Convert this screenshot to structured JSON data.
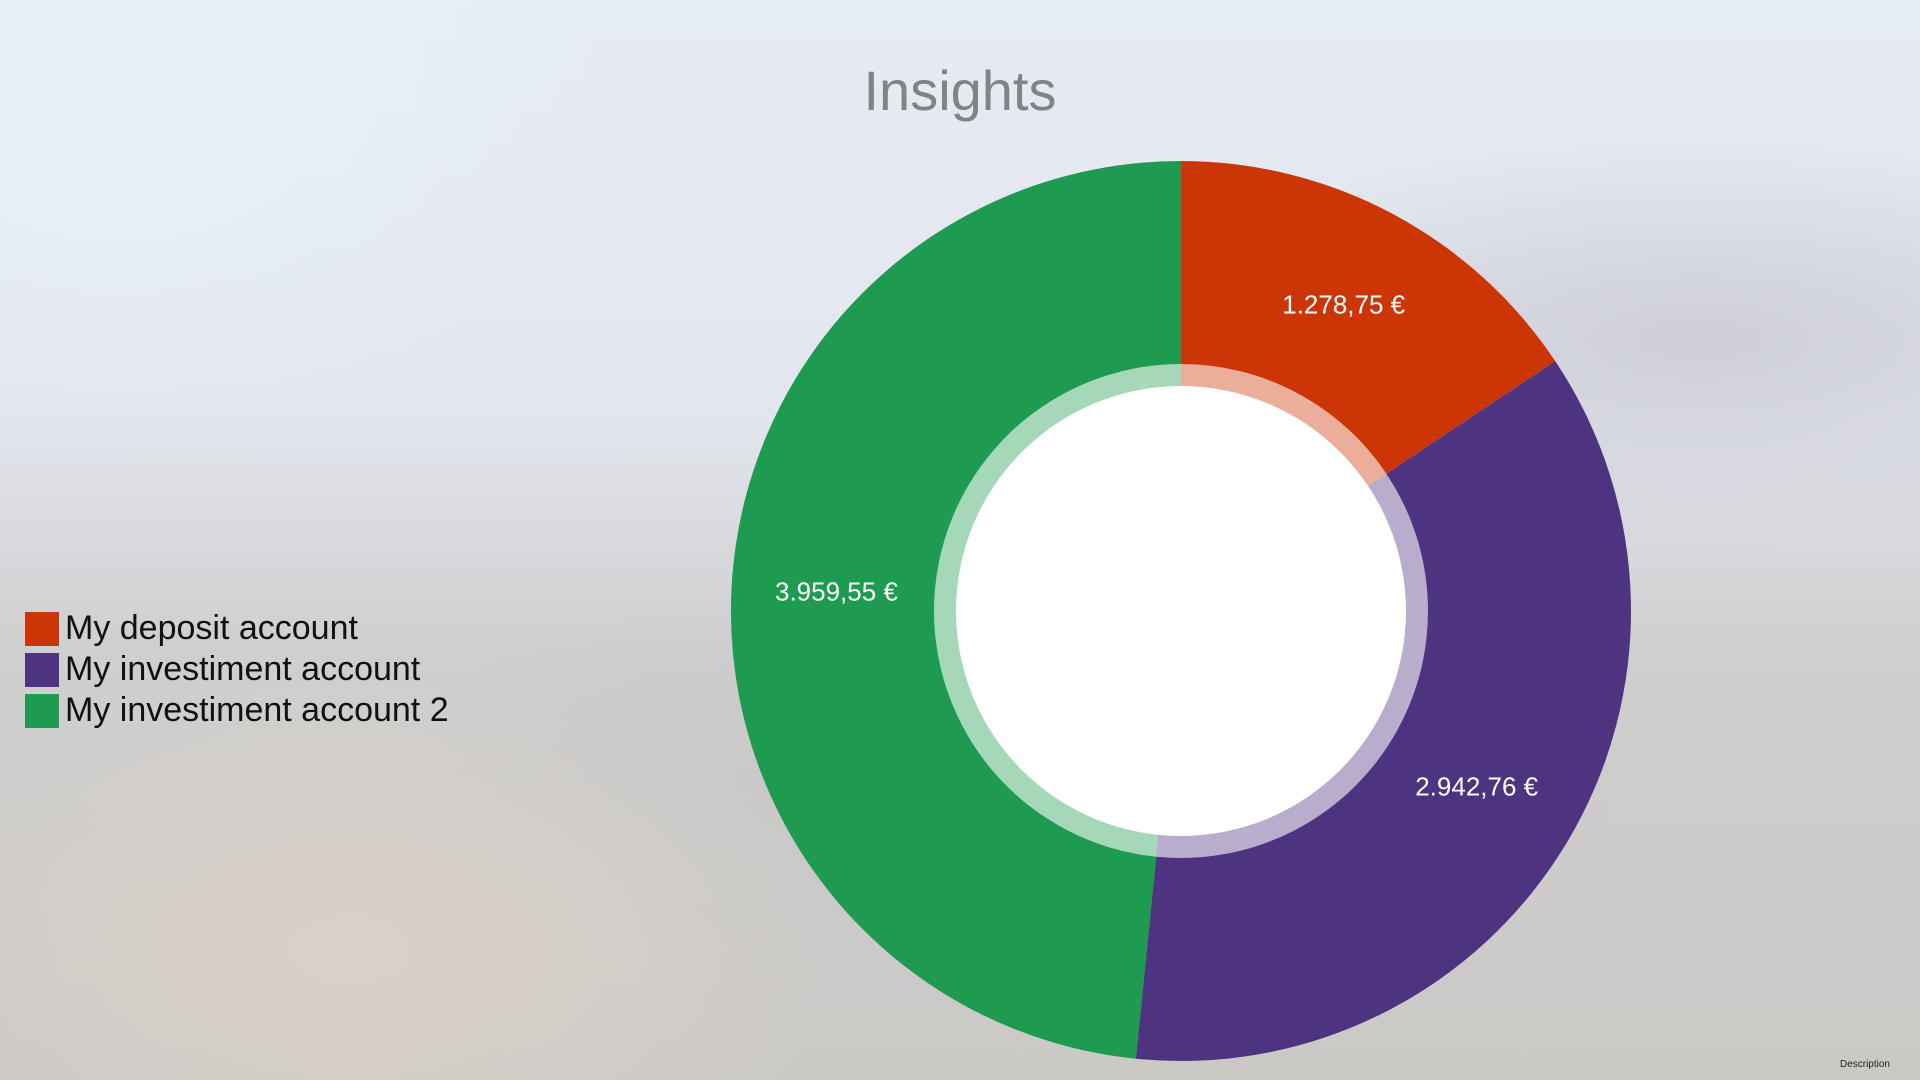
{
  "title": "Insights",
  "description_label": "Description",
  "chart_data": {
    "type": "pie",
    "style": "donut",
    "title": "Insights",
    "legend_position": "left",
    "slices": [
      {
        "label": "My deposit account",
        "value": 1278.75,
        "value_label": "1.278,75 €",
        "color": "#cc3506"
      },
      {
        "label": "My investiment account",
        "value": 2942.76,
        "value_label": "2.942,76 €",
        "color": "#4e3380"
      },
      {
        "label": "My investiment account 2",
        "value": 3959.55,
        "value_label": "3.959,55 €",
        "color": "#1e9b50"
      }
    ]
  },
  "legend": [
    {
      "label": "My deposit account",
      "color": "#cc3506"
    },
    {
      "label": "My investiment account",
      "color": "#4e3380"
    },
    {
      "label": "My investiment account 2",
      "color": "#1e9b50"
    }
  ]
}
